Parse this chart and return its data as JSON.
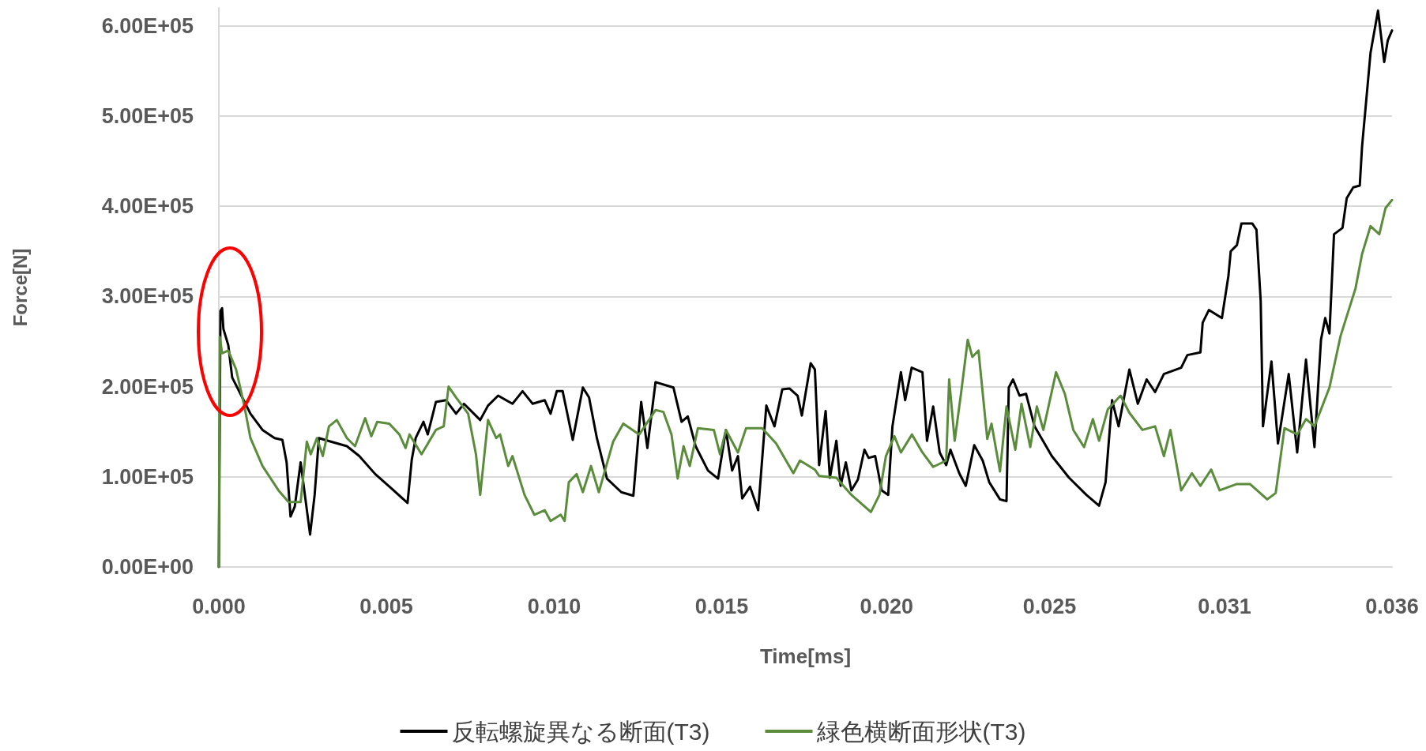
{
  "chart_data": {
    "type": "line",
    "xlabel": "Time[ms]",
    "ylabel": "Force[N]",
    "xlim": [
      0,
      0.036
    ],
    "xticks": [
      {
        "value": 0,
        "label": "0.000"
      },
      {
        "value": 0.00514,
        "label": "0.005"
      },
      {
        "value": 0.01029,
        "label": "0.010"
      },
      {
        "value": 0.01543,
        "label": "0.015"
      },
      {
        "value": 0.02049,
        "label": "0.020"
      },
      {
        "value": 0.02549,
        "label": "0.025"
      },
      {
        "value": 0.03086,
        "label": "0.031"
      },
      {
        "value": 0.036,
        "label": "0.036"
      }
    ],
    "ylim": [
      0,
      620000
    ],
    "yticks": [
      {
        "value": 0,
        "label": "0.00E+00"
      },
      {
        "value": 100000,
        "label": "1.00E+05"
      },
      {
        "value": 200000,
        "label": "2.00E+05"
      },
      {
        "value": 300000,
        "label": "3.00E+05"
      },
      {
        "value": 400000,
        "label": "4.00E+05"
      },
      {
        "value": 500000,
        "label": "5.00E+05"
      },
      {
        "value": 600000,
        "label": "6.00E+05"
      }
    ],
    "grid": "y",
    "legend": "bottom",
    "marker": "none",
    "line_style": "solid",
    "series": [
      {
        "name": "反転螺旋異なる断面(T3)",
        "color": "#000000",
        "x": [
          0,
          5e-05,
          0.0001,
          0.00014,
          0.00029,
          0.00041,
          0.00072,
          0.00097,
          0.00134,
          0.00171,
          0.00195,
          0.00208,
          0.0022,
          0.00233,
          0.00251,
          0.00264,
          0.0028,
          0.00294,
          0.00307,
          0.00344,
          0.00393,
          0.00431,
          0.0048,
          0.0053,
          0.00579,
          0.00592,
          0.00604,
          0.00628,
          0.00641,
          0.00666,
          0.00697,
          0.00728,
          0.00752,
          0.00802,
          0.00826,
          0.00857,
          0.00901,
          0.00932,
          0.00963,
          0.01,
          0.01018,
          0.01037,
          0.01055,
          0.01086,
          0.01117,
          0.01136,
          0.0116,
          0.01191,
          0.01235,
          0.01272,
          0.01296,
          0.01315,
          0.0134,
          0.01395,
          0.0142,
          0.01439,
          0.01463,
          0.01501,
          0.01532,
          0.01556,
          0.01575,
          0.01593,
          0.01606,
          0.0163,
          0.01655,
          0.0168,
          0.01705,
          0.01729,
          0.01751,
          0.01776,
          0.01789,
          0.01816,
          0.01829,
          0.01842,
          0.01862,
          0.01875,
          0.01895,
          0.01908,
          0.01924,
          0.01941,
          0.01961,
          0.01981,
          0.01994,
          0.02014,
          0.02034,
          0.02054,
          0.02067,
          0.02093,
          0.02106,
          0.02126,
          0.02159,
          0.02173,
          0.02192,
          0.02212,
          0.02232,
          0.02245,
          0.02272,
          0.02292,
          0.02318,
          0.02344,
          0.02364,
          0.02397,
          0.02417,
          0.02424,
          0.02437,
          0.02457,
          0.02477,
          0.02503,
          0.02556,
          0.02609,
          0.02662,
          0.02701,
          0.02721,
          0.02741,
          0.02761,
          0.02794,
          0.0282,
          0.02847,
          0.02873,
          0.029,
          0.02953,
          0.02972,
          0.03012,
          0.03019,
          0.03038,
          0.03078,
          0.03098,
          0.03105,
          0.03124,
          0.03138,
          0.03171,
          0.03184,
          0.03197,
          0.03204,
          0.0323,
          0.0325,
          0.03283,
          0.03309,
          0.03336,
          0.03362,
          0.03382,
          0.03395,
          0.03408,
          0.03422,
          0.03448,
          0.03461,
          0.03481,
          0.03501,
          0.03508,
          0.03534,
          0.03557,
          0.03576,
          0.03587,
          0.036
        ],
        "values": [
          0,
          284000,
          287000,
          264000,
          246000,
          210000,
          188000,
          170000,
          152000,
          143000,
          141000,
          116000,
          56000,
          67000,
          116000,
          80000,
          36000,
          80000,
          143000,
          139000,
          134000,
          123000,
          103000,
          87000,
          71000,
          119000,
          143000,
          161000,
          147000,
          183000,
          185000,
          170000,
          181000,
          163000,
          179000,
          190000,
          181000,
          195000,
          181000,
          185000,
          170000,
          195000,
          195000,
          141000,
          199000,
          188000,
          143000,
          98000,
          83000,
          79000,
          183000,
          132000,
          205000,
          199000,
          161000,
          167000,
          134000,
          107000,
          98000,
          152000,
          107000,
          123000,
          76000,
          89000,
          63000,
          179000,
          156000,
          197000,
          198000,
          190000,
          168000,
          226000,
          219000,
          113000,
          173000,
          99000,
          140000,
          90000,
          116000,
          85000,
          97000,
          130000,
          121000,
          123000,
          85000,
          80000,
          156000,
          216000,
          185000,
          221000,
          216000,
          140000,
          178000,
          127000,
          113000,
          130000,
          104000,
          90000,
          135000,
          118000,
          94000,
          75000,
          73000,
          199000,
          208000,
          190000,
          192000,
          156000,
          123000,
          99000,
          80000,
          68000,
          94000,
          185000,
          156000,
          219000,
          181000,
          208000,
          194000,
          214000,
          221000,
          235000,
          238000,
          271000,
          285000,
          276000,
          323000,
          350000,
          357000,
          381000,
          381000,
          374000,
          295000,
          156000,
          228000,
          137000,
          214000,
          127000,
          230000,
          133000,
          252000,
          276000,
          259000,
          369000,
          376000,
          409000,
          421000,
          423000,
          466000,
          570000,
          617000,
          560000,
          584000,
          595000
        ]
      },
      {
        "name": "緑色横断面形状(T3)",
        "color": "#5b8c3c",
        "x": [
          0,
          3e-05,
          0.0001,
          0.00029,
          0.00053,
          0.00078,
          0.00097,
          0.00134,
          0.00183,
          0.00214,
          0.00251,
          0.0027,
          0.00282,
          0.00301,
          0.00319,
          0.00338,
          0.00362,
          0.00393,
          0.00418,
          0.00449,
          0.00468,
          0.00486,
          0.00523,
          0.00554,
          0.00573,
          0.00585,
          0.00622,
          0.00666,
          0.0069,
          0.00705,
          0.00728,
          0.00765,
          0.00789,
          0.00802,
          0.00826,
          0.00851,
          0.00863,
          0.00888,
          0.00901,
          0.00938,
          0.00968,
          0.01,
          0.01018,
          0.01049,
          0.01061,
          0.01074,
          0.01098,
          0.01117,
          0.01142,
          0.01166,
          0.0121,
          0.01241,
          0.0129,
          0.0134,
          0.01364,
          0.01389,
          0.01408,
          0.01426,
          0.01445,
          0.0147,
          0.01519,
          0.01538,
          0.01556,
          0.01593,
          0.01618,
          0.01667,
          0.0171,
          0.01763,
          0.01783,
          0.01829,
          0.01842,
          0.01895,
          0.01941,
          0.02001,
          0.02027,
          0.02047,
          0.02073,
          0.02093,
          0.02127,
          0.02159,
          0.02192,
          0.02232,
          0.02241,
          0.02258,
          0.02278,
          0.02298,
          0.02312,
          0.02331,
          0.02358,
          0.02371,
          0.02397,
          0.02417,
          0.02444,
          0.02463,
          0.0249,
          0.0251,
          0.0253,
          0.02569,
          0.02596,
          0.02622,
          0.02655,
          0.02682,
          0.02701,
          0.02728,
          0.02767,
          0.02794,
          0.02834,
          0.02873,
          0.029,
          0.0292,
          0.02953,
          0.02986,
          0.03012,
          0.03045,
          0.03071,
          0.03124,
          0.03164,
          0.03217,
          0.03243,
          0.0327,
          0.03309,
          0.03336,
          0.03362,
          0.03408,
          0.03442,
          0.03488,
          0.03508,
          0.03534,
          0.03561,
          0.0358,
          0.036
        ],
        "values": [
          0,
          255000,
          237000,
          240000,
          219000,
          179000,
          143000,
          112000,
          85000,
          72000,
          72000,
          139000,
          125000,
          143000,
          123000,
          156000,
          163000,
          143000,
          134000,
          165000,
          145000,
          161000,
          159000,
          147000,
          132000,
          147000,
          125000,
          152000,
          156000,
          200000,
          188000,
          170000,
          125000,
          80000,
          163000,
          143000,
          147000,
          112000,
          123000,
          80000,
          58000,
          63000,
          51000,
          58000,
          51000,
          94000,
          103000,
          83000,
          112000,
          83000,
          139000,
          159000,
          147000,
          174000,
          172000,
          147000,
          98000,
          134000,
          112000,
          154000,
          152000,
          125000,
          152000,
          127000,
          154000,
          154000,
          137000,
          104000,
          118000,
          108000,
          101000,
          99000,
          80000,
          61000,
          80000,
          123000,
          145000,
          127000,
          147000,
          127000,
          111000,
          118000,
          208000,
          140000,
          194000,
          252000,
          233000,
          240000,
          142000,
          159000,
          106000,
          178000,
          130000,
          181000,
          133000,
          178000,
          152000,
          216000,
          192000,
          152000,
          133000,
          164000,
          140000,
          175000,
          190000,
          171000,
          152000,
          156000,
          123000,
          152000,
          85000,
          104000,
          90000,
          108000,
          85000,
          92000,
          92000,
          75000,
          82000,
          154000,
          147000,
          164000,
          156000,
          199000,
          256000,
          309000,
          347000,
          378000,
          369000,
          398000,
          407000
        ]
      }
    ]
  }
}
